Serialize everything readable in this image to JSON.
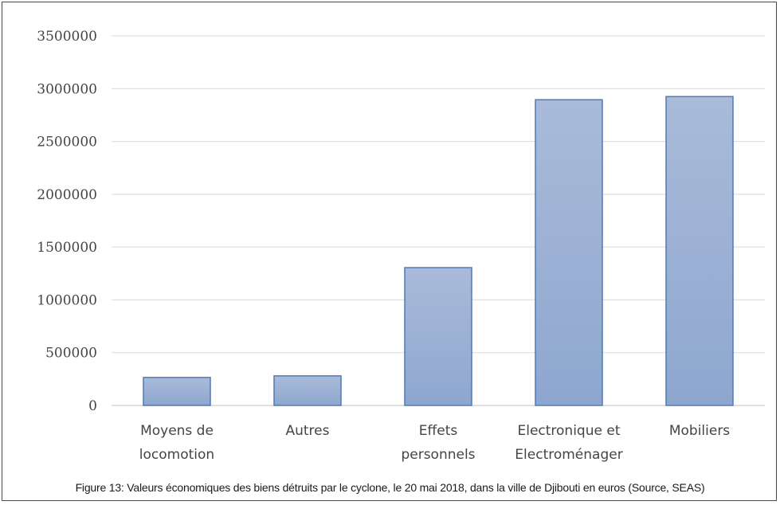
{
  "caption": "Figure 13: Valeurs économiques des biens détruits par le cyclone, le 20 mai 2018, dans la ville de Djibouti en euros (Source, SEAS)",
  "colors": {
    "bar_fill_top": "#a9bbd9",
    "bar_fill_bottom": "#8ea6cf",
    "bar_stroke": "#4f7ab8",
    "grid": "#d9d9d9",
    "axis": "#bfbfbf"
  },
  "chart_data": {
    "type": "bar",
    "categories": [
      [
        "Moyens de",
        "locomotion"
      ],
      [
        "Autres"
      ],
      [
        "Effets",
        "personnels"
      ],
      [
        "Electronique et",
        "Electroménager"
      ],
      [
        "Mobiliers"
      ]
    ],
    "values": [
      265000,
      280000,
      1305000,
      2895000,
      2925000
    ],
    "ylim": [
      0,
      3500000
    ],
    "yticks": [
      "0",
      "500000",
      "1000000",
      "1500000",
      "2000000",
      "2500000",
      "3000000",
      "3500000"
    ],
    "grid": true,
    "legend": "none"
  }
}
